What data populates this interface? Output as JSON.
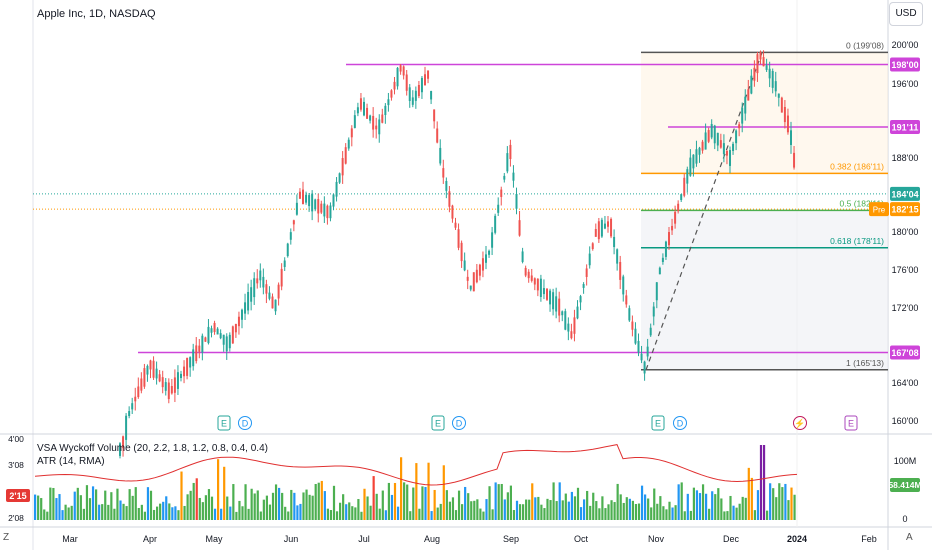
{
  "header": {
    "title": "Apple Inc, 1D, NASDAQ",
    "currency": "USD"
  },
  "indicators": {
    "vsa": "VSA Wyckoff Volume (20, 2.2, 1.8, 1.2, 0.8, 0.4, 0.4)",
    "atr": "ATR (14, RMA)"
  },
  "corners": {
    "bottom_left": "Z",
    "bottom_right": "A"
  },
  "colors": {
    "up": "#26a69a",
    "down": "#ef5350",
    "fib_line": "#9c27b0",
    "level_line": "#ce44d9",
    "orange": "#ff9800",
    "green": "#089981",
    "atr": "#e03030",
    "vol_green": "#4caf50",
    "vol_blue": "#2196f3",
    "vol_orange": "#ff9800",
    "vol_red": "#f44336",
    "vol_purple": "#7b1fa2"
  },
  "chart_data": {
    "type": "candlestick",
    "price_axis": {
      "ticks": [
        "200'00",
        "196'00",
        "188'00",
        "180'00",
        "176'00",
        "172'00",
        "164'00",
        "160'00"
      ],
      "range": [
        158,
        201
      ]
    },
    "time_axis": {
      "labels": [
        "Mar",
        "Apr",
        "May",
        "Jun",
        "Jul",
        "Aug",
        "Sep",
        "Oct",
        "Nov",
        "Dec",
        "2024",
        "Feb"
      ],
      "bold_label": "2024"
    },
    "price_labels": [
      {
        "value": 198.0,
        "text": "198'00",
        "color": "#ce44d9"
      },
      {
        "value": 191.35,
        "text": "191'11",
        "color": "#ce44d9"
      },
      {
        "value": 184.12,
        "text": "184'04",
        "color": "#26a69a"
      },
      {
        "value": 182.47,
        "text": "182'15",
        "color": "#ff9800"
      },
      {
        "value": 167.25,
        "text": "167'08",
        "color": "#ce44d9"
      }
    ],
    "pre_label": "Pre",
    "horizontal_levels": [
      198.0,
      191.35,
      167.25
    ],
    "fibonacci": [
      {
        "label": "0 (199'08)",
        "value": 199.25
      },
      {
        "label": "0.382 (186'11)",
        "value": 186.34
      },
      {
        "label": "0.5 (182'11)",
        "value": 182.34
      },
      {
        "label": "0.618 (178'11)",
        "value": 178.34
      },
      {
        "label": "1 (165'13)",
        "value": 165.41
      }
    ],
    "event_markers": [
      {
        "x": "May",
        "items": [
          "E",
          "D"
        ]
      },
      {
        "x": "Aug",
        "items": [
          "E",
          "D"
        ]
      },
      {
        "x": "Nov",
        "items": [
          "E",
          "D"
        ]
      },
      {
        "x": "Dec",
        "items": [
          "⚡",
          "E"
        ]
      }
    ],
    "volume": {
      "last_label": "58.414M",
      "axis_labels": [
        "100M",
        "0"
      ],
      "atr_axis_labels": [
        "4'00",
        "3'08",
        "2'15",
        "2'08"
      ],
      "atr_label": "2'15"
    }
  }
}
